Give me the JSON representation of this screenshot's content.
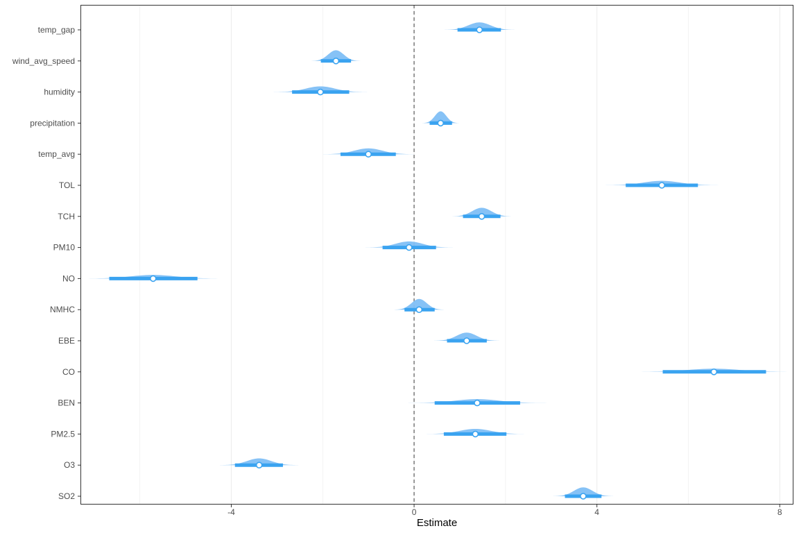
{
  "chart_data": {
    "type": "halfeye",
    "xlabel": "Estimate",
    "ylabel": "",
    "xlim": [
      -7.3,
      8.3
    ],
    "x_ticks": [
      -4,
      0,
      4,
      8
    ],
    "x_tick_labels": [
      "-4",
      "0",
      "4",
      "8"
    ],
    "grid": "vertical major and minor",
    "reference_line": {
      "x": 0,
      "style": "dashed"
    },
    "colors": {
      "fill": "#7fbff5",
      "interval": "#3aa3f0",
      "point_fill": "#ffffff",
      "reference": "#808080",
      "grid": "#ebebeb",
      "panel_border": "#333333"
    },
    "categories": [
      "temp_gap",
      "wind_avg_speed",
      "humidity",
      "precipitation",
      "temp_avg",
      "TOL",
      "TCH",
      "PM10",
      "NO",
      "NMHC",
      "EBE",
      "CO",
      "BEN",
      "PM2.5",
      "O3",
      "SO2"
    ],
    "points": [
      {
        "label": "temp_gap",
        "estimate": 1.43,
        "lower": 0.95,
        "upper": 1.9
      },
      {
        "label": "wind_avg_speed",
        "estimate": -1.71,
        "lower": -2.04,
        "upper": -1.38
      },
      {
        "label": "humidity",
        "estimate": -2.05,
        "lower": -2.67,
        "upper": -1.42
      },
      {
        "label": "precipitation",
        "estimate": 0.58,
        "lower": 0.34,
        "upper": 0.83
      },
      {
        "label": "temp_avg",
        "estimate": -1.0,
        "lower": -1.61,
        "upper": -0.4
      },
      {
        "label": "TOL",
        "estimate": 5.42,
        "lower": 4.63,
        "upper": 6.21
      },
      {
        "label": "TCH",
        "estimate": 1.48,
        "lower": 1.07,
        "upper": 1.89
      },
      {
        "label": "PM10",
        "estimate": -0.11,
        "lower": -0.69,
        "upper": 0.48
      },
      {
        "label": "NO",
        "estimate": -5.71,
        "lower": -6.67,
        "upper": -4.74
      },
      {
        "label": "NMHC",
        "estimate": 0.11,
        "lower": -0.21,
        "upper": 0.45
      },
      {
        "label": "EBE",
        "estimate": 1.15,
        "lower": 0.72,
        "upper": 1.59
      },
      {
        "label": "CO",
        "estimate": 6.56,
        "lower": 5.44,
        "upper": 7.7
      },
      {
        "label": "BEN",
        "estimate": 1.38,
        "lower": 0.45,
        "upper": 2.32
      },
      {
        "label": "PM2.5",
        "estimate": 1.34,
        "lower": 0.65,
        "upper": 2.02
      },
      {
        "label": "O3",
        "estimate": -3.39,
        "lower": -3.92,
        "upper": -2.87
      },
      {
        "label": "SO2",
        "estimate": 3.7,
        "lower": 3.3,
        "upper": 4.1
      }
    ]
  }
}
